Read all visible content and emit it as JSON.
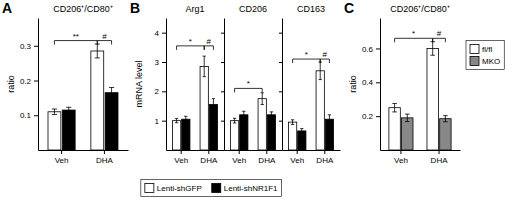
{
  "chart_data": [
    {
      "type": "bar",
      "title": "CD206⁺/CD80⁺",
      "ylabel": "ratio",
      "categories": [
        "Veh",
        "DHA"
      ],
      "series": [
        {
          "name": "Lenti-shGFP",
          "color": "white",
          "values": [
            0.11,
            0.285
          ],
          "errors": [
            0.008,
            0.02
          ]
        },
        {
          "name": "Lenti-shNR1F1",
          "color": "black",
          "values": [
            0.115,
            0.165
          ],
          "errors": [
            0.008,
            0.015
          ]
        }
      ],
      "ylim": [
        0.0,
        0.38
      ],
      "yticks": [
        0.1,
        0.2,
        0.3
      ],
      "legend": "bottom",
      "annotations": [
        {
          "text": "A"
        },
        {
          "text": "**",
          "y": 0.315,
          "from": {
            "category": "Veh",
            "series": "Lenti-shGFP"
          },
          "to": {
            "category": "DHA",
            "series": "Lenti-shGFP"
          }
        },
        {
          "text": "#",
          "y": 0.315,
          "from": {
            "category": "DHA",
            "series": "Lenti-shGFP"
          },
          "to": {
            "category": "DHA",
            "series": "Lenti-shNR1F1"
          }
        }
      ]
    },
    {
      "type": "bar",
      "title": "Arg1",
      "ylabel": "mRNA level",
      "categories": [
        "Veh",
        "DHA"
      ],
      "series": [
        {
          "name": "Lenti-shGFP",
          "color": "white",
          "values": [
            1.0,
            2.85
          ],
          "errors": [
            0.07,
            0.35
          ]
        },
        {
          "name": "Lenti-shNR1F1",
          "color": "black",
          "values": [
            1.05,
            1.55
          ],
          "errors": [
            0.1,
            0.2
          ]
        }
      ],
      "ylim": [
        0.0,
        4.5
      ],
      "yticks": [
        1,
        2,
        3,
        4
      ],
      "annotations": [
        {
          "text": "B"
        },
        {
          "text": "*",
          "y": 3.55,
          "from": {
            "category": "Veh",
            "series": "Lenti-shGFP"
          },
          "to": {
            "category": "DHA",
            "series": "Lenti-shGFP"
          }
        },
        {
          "text": "#",
          "y": 3.55,
          "from": {
            "category": "DHA",
            "series": "Lenti-shGFP"
          },
          "to": {
            "category": "DHA",
            "series": "Lenti-shNR1F1"
          }
        }
      ]
    },
    {
      "type": "bar",
      "title": "CD206",
      "categories": [
        "Veh",
        "DHA"
      ],
      "series": [
        {
          "name": "Lenti-shGFP",
          "color": "white",
          "values": [
            1.0,
            1.75
          ],
          "errors": [
            0.08,
            0.2
          ]
        },
        {
          "name": "Lenti-shNR1F1",
          "color": "black",
          "values": [
            1.2,
            1.2
          ],
          "errors": [
            0.12,
            0.1
          ]
        }
      ],
      "ylim": [
        0.0,
        4.5
      ],
      "yticks": [
        1,
        2,
        3,
        4
      ],
      "tick_labels": "x",
      "annotations": [
        {
          "text": "*",
          "y": 2.1,
          "from": {
            "category": "Veh",
            "series": "Lenti-shGFP"
          },
          "to": {
            "category": "DHA",
            "series": "Lenti-shGFP"
          }
        }
      ]
    },
    {
      "type": "bar",
      "title": "CD163",
      "categories": [
        "Veh",
        "DHA"
      ],
      "series": [
        {
          "name": "Lenti-shGFP",
          "color": "white",
          "values": [
            0.95,
            2.7
          ],
          "errors": [
            0.08,
            0.3
          ]
        },
        {
          "name": "Lenti-shNR1F1",
          "color": "black",
          "values": [
            0.65,
            1.05
          ],
          "errors": [
            0.08,
            0.15
          ]
        }
      ],
      "ylim": [
        0.0,
        4.5
      ],
      "yticks": [
        1,
        2,
        3,
        4
      ],
      "tick_labels": "x",
      "annotations": [
        {
          "text": "*",
          "y": 3.1,
          "from": {
            "category": "Veh",
            "series": "Lenti-shGFP"
          },
          "to": {
            "category": "DHA",
            "series": "Lenti-shGFP"
          }
        },
        {
          "text": "#",
          "y": 3.1,
          "from": {
            "category": "DHA",
            "series": "Lenti-shGFP"
          },
          "to": {
            "category": "DHA",
            "series": "Lenti-shNR1F1"
          }
        }
      ]
    },
    {
      "type": "bar",
      "title": "CD206⁺/CD80⁺",
      "ylabel": "ratio",
      "categories": [
        "Veh",
        "DHA"
      ],
      "series": [
        {
          "name": "fl/fl",
          "color": "white",
          "values": [
            0.25,
            0.6
          ],
          "errors": [
            0.025,
            0.04
          ]
        },
        {
          "name": "MKO",
          "color": "#888888",
          "values": [
            0.19,
            0.185
          ],
          "errors": [
            0.022,
            0.018
          ]
        }
      ],
      "ylim": [
        0.0,
        0.78
      ],
      "yticks": [
        0.2,
        0.4,
        0.6
      ],
      "legend": "right",
      "annotations": [
        {
          "text": "C"
        },
        {
          "text": "*",
          "y": 0.66,
          "from": {
            "category": "Veh",
            "series": "fl/fl"
          },
          "to": {
            "category": "DHA",
            "series": "fl/fl"
          }
        },
        {
          "text": "#",
          "y": 0.66,
          "from": {
            "category": "DHA",
            "series": "fl/fl"
          },
          "to": {
            "category": "DHA",
            "series": "MKO"
          }
        }
      ]
    }
  ]
}
